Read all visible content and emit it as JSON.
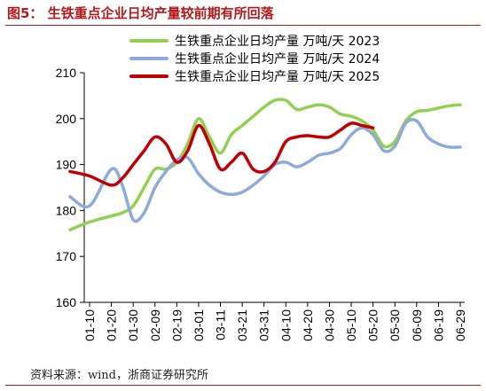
{
  "figure_title": "图5： 生铁重点企业日均产量较前期有所回落",
  "source_note": "资料来源：wind，浙商证券研究所",
  "chart_data": {
    "type": "line",
    "title": "",
    "xlabel": "",
    "ylabel": "",
    "ylim": [
      160,
      210
    ],
    "yticks": [
      160,
      170,
      180,
      190,
      200,
      210
    ],
    "grid": false,
    "legend_position": "top",
    "x_tick_labels": [
      "01-10",
      "01-20",
      "01-30",
      "02-09",
      "02-19",
      "03-01",
      "03-11",
      "03-21",
      "03-31",
      "04-10",
      "04-20",
      "04-30",
      "05-10",
      "05-20",
      "05-30",
      "06-09",
      "06-19",
      "06-29"
    ],
    "x": [
      "01-01",
      "01-10",
      "01-20",
      "01-25",
      "01-30",
      "02-04",
      "02-09",
      "02-14",
      "02-19",
      "02-24",
      "03-01",
      "03-06",
      "03-11",
      "03-16",
      "03-21",
      "03-26",
      "03-31",
      "04-05",
      "04-10",
      "04-15",
      "04-20",
      "04-25",
      "04-30",
      "05-05",
      "05-10",
      "05-15",
      "05-20",
      "05-25",
      "05-30",
      "06-04",
      "06-09",
      "06-14",
      "06-19",
      "06-24",
      "06-29"
    ],
    "series": [
      {
        "name": "生铁重点企业日均产量  万吨/天  2023",
        "color": "#92d050",
        "values": [
          175.8,
          177.5,
          178.8,
          179.5,
          181.0,
          185.0,
          189.0,
          189.0,
          190.5,
          194.5,
          200.0,
          196.0,
          192.5,
          196.5,
          198.5,
          200.5,
          202.5,
          204.0,
          204.0,
          202.0,
          202.5,
          203.0,
          202.5,
          201.0,
          200.5,
          199.5,
          197.5,
          194.0,
          195.0,
          199.5,
          201.5,
          201.8,
          202.3,
          202.8,
          203.0
        ]
      },
      {
        "name": "生铁重点企业日均产量  万吨/天  2024",
        "color": "#8eaadb",
        "values": [
          183.0,
          181.0,
          189.0,
          185.5,
          178.0,
          179.5,
          185.0,
          188.5,
          191.0,
          191.5,
          188.0,
          185.5,
          184.0,
          183.5,
          184.0,
          185.5,
          187.5,
          190.0,
          190.5,
          189.5,
          190.5,
          192.0,
          192.5,
          193.5,
          196.5,
          198.0,
          196.5,
          193.0,
          194.0,
          199.0,
          199.5,
          196.0,
          194.5,
          193.8,
          193.8
        ]
      },
      {
        "name": "生铁重点企业日均产量  万吨/天  2025",
        "color": "#c00000",
        "values": [
          188.5,
          187.5,
          185.5,
          187.0,
          190.0,
          193.0,
          196.0,
          194.5,
          190.5,
          193.0,
          198.5,
          194.5,
          189.0,
          190.5,
          192.5,
          189.0,
          188.5,
          190.5,
          195.0,
          196.0,
          196.3,
          196.0,
          196.0,
          197.5,
          199.0,
          198.5,
          198.0,
          null,
          null,
          null,
          null,
          null,
          null,
          null,
          null
        ]
      }
    ]
  }
}
